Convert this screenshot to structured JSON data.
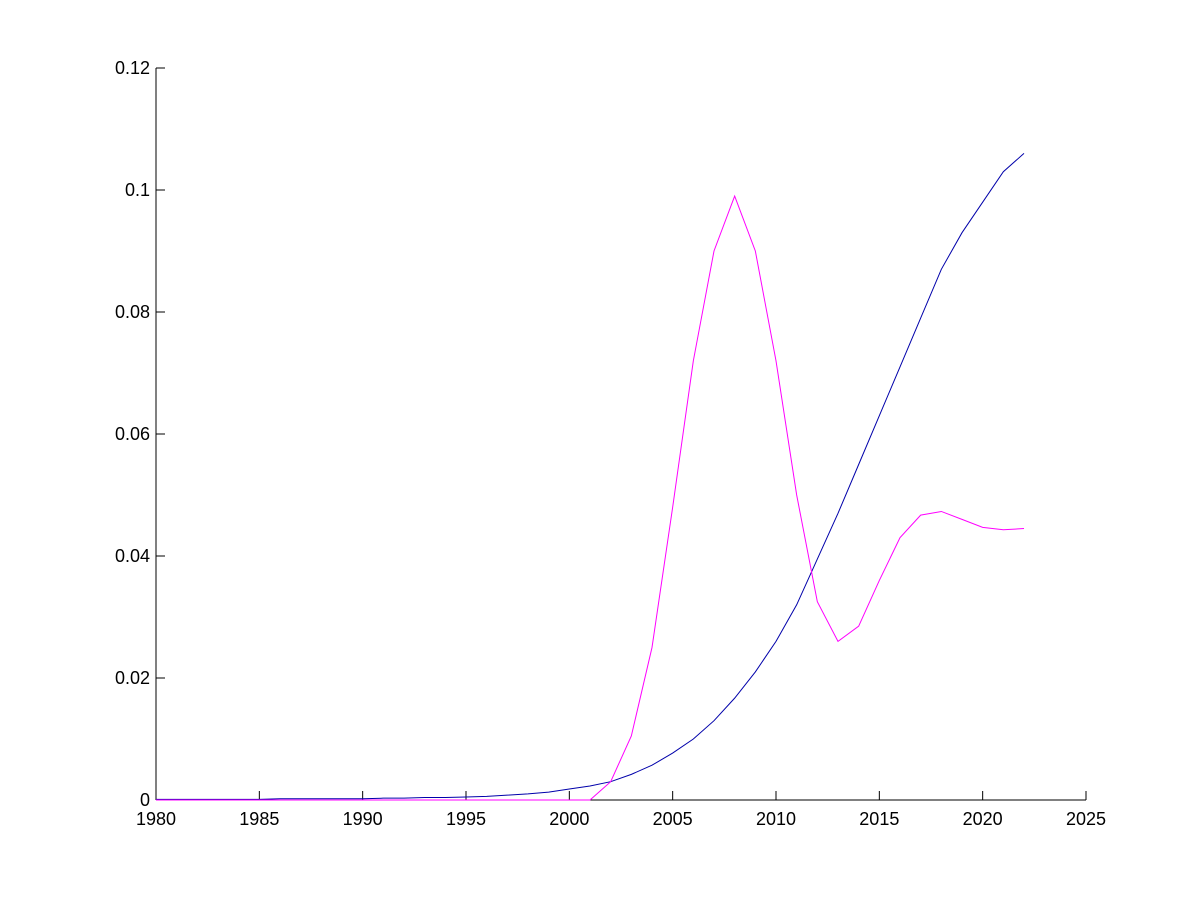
{
  "chart_data": {
    "type": "line",
    "x": [
      1980,
      1981,
      1982,
      1983,
      1984,
      1985,
      1986,
      1987,
      1988,
      1989,
      1990,
      1991,
      1992,
      1993,
      1994,
      1995,
      1996,
      1997,
      1998,
      1999,
      2000,
      2001,
      2002,
      2003,
      2004,
      2005,
      2006,
      2007,
      2008,
      2009,
      2010,
      2011,
      2012,
      2013,
      2014,
      2015,
      2016,
      2017,
      2018,
      2019,
      2020,
      2021,
      2022
    ],
    "series": [
      {
        "color": "#0000aa",
        "values": [
          0.0001,
          0.0001,
          0.0001,
          0.0001,
          0.0001,
          0.0001,
          0.0002,
          0.0002,
          0.0002,
          0.0002,
          0.0002,
          0.0003,
          0.0003,
          0.0004,
          0.0004,
          0.0005,
          0.0006,
          0.0008,
          0.001,
          0.0013,
          0.0018,
          0.0023,
          0.003,
          0.0042,
          0.0057,
          0.0077,
          0.01,
          0.013,
          0.0167,
          0.021,
          0.026,
          0.032,
          0.0395,
          0.047,
          0.055,
          0.063,
          0.071,
          0.079,
          0.087,
          0.093,
          0.098,
          0.103,
          0.106
        ]
      },
      {
        "color": "#ff00ff",
        "values": [
          0,
          0,
          0,
          0,
          0,
          0,
          0,
          0,
          0,
          0,
          0,
          0,
          0,
          0,
          0,
          0,
          0,
          0,
          0,
          0,
          0,
          0,
          0.003,
          0.0105,
          0.025,
          0.048,
          0.072,
          0.09,
          0.099,
          0.09,
          0.072,
          0.05,
          0.0325,
          0.026,
          0.0285,
          0.036,
          0.043,
          0.0467,
          0.0473,
          0.046,
          0.0447,
          0.0443,
          0.0445
        ]
      }
    ],
    "xlim": [
      1980,
      2025
    ],
    "xticks": [
      1980,
      1985,
      1990,
      1995,
      2000,
      2005,
      2010,
      2015,
      2020,
      2025
    ],
    "ylim": [
      0,
      0.12
    ],
    "yticks": [
      0,
      0.02,
      0.04,
      0.06,
      0.08,
      0.1,
      0.12
    ]
  }
}
